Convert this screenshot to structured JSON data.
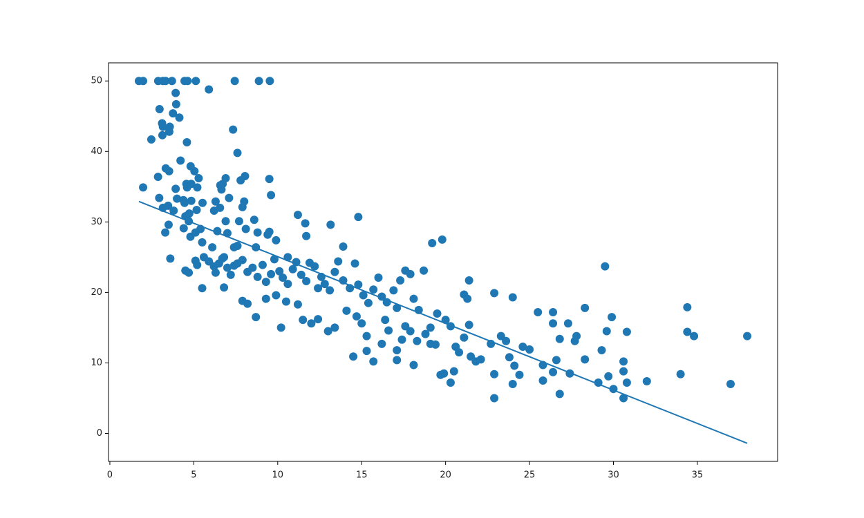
{
  "chart_data": {
    "type": "scatter",
    "xlim": [
      -0.08,
      39.78
    ],
    "ylim": [
      -3.97,
      52.57
    ],
    "xticks": [
      0,
      5,
      10,
      15,
      20,
      25,
      30,
      35
    ],
    "yticks": [
      0,
      10,
      20,
      30,
      40,
      50
    ],
    "series": [
      {
        "type": "scatter",
        "color": "#1f77b4",
        "x": [
          1.73,
          1.98,
          2.88,
          3.16,
          3.32,
          3.7,
          4.45,
          4.63,
          5.12,
          7.44,
          8.88,
          9.53,
          5.9,
          3.92,
          3.95,
          2.96,
          3.76,
          4.14,
          3.11,
          3.16,
          3.57,
          3.54,
          3.13,
          2.47,
          4.59,
          7.34,
          7.6,
          4.21,
          3.33,
          3.53,
          4.81,
          5.04,
          5.29,
          2.87,
          1.98,
          8.05,
          7.79,
          9.5,
          6.72,
          6.58,
          6.65,
          4.56,
          4.85,
          5.21,
          3.92,
          4.6,
          6.9,
          7.1,
          2.94,
          4.0,
          4.38,
          4.85,
          9.6,
          6.3,
          8.0,
          7.9,
          5.52,
          4.45,
          3.16,
          3.47,
          6.56,
          6.21,
          3.8,
          5.17,
          4.73,
          4.5,
          4.7,
          7.7,
          6.9,
          8.6,
          11.2,
          11.64,
          13.15,
          14.8,
          3.5,
          3.3,
          4.4,
          5.4,
          5.1,
          6.4,
          7.0,
          8.1,
          8.8,
          9.4,
          9.5,
          9.9,
          11.7,
          13.9,
          19.2,
          19.8,
          4.8,
          5.5,
          6.1,
          6.8,
          7.4,
          7.6,
          8.7,
          10.6,
          3.6,
          4.5,
          4.7,
          5.1,
          5.2,
          5.6,
          5.9,
          6.2,
          6.3,
          6.5,
          6.7,
          7.0,
          7.2,
          7.4,
          7.6,
          7.9,
          8.2,
          8.5,
          8.8,
          9.1,
          9.3,
          9.6,
          9.8,
          10.1,
          10.3,
          10.6,
          10.9,
          11.1,
          11.4,
          11.7,
          11.9,
          12.2,
          12.4,
          12.6,
          12.8,
          13.1,
          13.4,
          13.6,
          13.9,
          14.3,
          14.6,
          14.8,
          15.1,
          15.4,
          15.7,
          16.0,
          16.2,
          16.5,
          16.9,
          17.1,
          17.3,
          17.6,
          17.9,
          18.1,
          18.4,
          18.7,
          19.1,
          19.5,
          20.3,
          20.0,
          21.1,
          21.3,
          21.4,
          22.9,
          24.0,
          5.5,
          6.8,
          7.9,
          8.2,
          8.7,
          9.3,
          9.9,
          10.2,
          10.5,
          11.2,
          11.5,
          12.0,
          12.4,
          13.0,
          13.4,
          14.1,
          14.5,
          14.7,
          15.0,
          15.3,
          15.3,
          15.7,
          16.2,
          16.4,
          16.6,
          17.1,
          17.1,
          17.4,
          17.6,
          17.9,
          18.1,
          18.3,
          18.8,
          19.1,
          19.4,
          19.7,
          19.9,
          20.3,
          20.5,
          20.6,
          20.8,
          21.1,
          21.4,
          21.5,
          21.8,
          22.1,
          22.7,
          22.9,
          22.9,
          23.3,
          23.6,
          23.8,
          24.0,
          24.1,
          24.4,
          24.6,
          25.0,
          25.5,
          25.8,
          25.8,
          26.4,
          26.4,
          26.6,
          26.4,
          26.8,
          26.8,
          27.3,
          27.4,
          27.7,
          27.8,
          28.3,
          28.3,
          29.1,
          29.3,
          29.5,
          29.6,
          29.7,
          29.9,
          30.0,
          30.6,
          30.6,
          30.6,
          30.8,
          30.8,
          31.99,
          34.0,
          34.4,
          34.4,
          34.8,
          36.98,
          37.97
        ],
        "values": [
          50,
          50,
          50,
          50,
          50,
          50,
          50,
          50,
          50,
          50,
          50,
          50,
          48.8,
          48.3,
          46.7,
          46,
          45.4,
          44.8,
          44,
          43.5,
          43.5,
          42.8,
          42.3,
          41.7,
          41.3,
          43.1,
          39.8,
          38.7,
          37.6,
          37.2,
          37.9,
          37.2,
          36.2,
          36.4,
          34.9,
          36.5,
          35.9,
          36.1,
          35.4,
          35.2,
          34.6,
          35.4,
          35.4,
          34.9,
          34.7,
          34.9,
          36.2,
          33.4,
          33.4,
          33.3,
          33.1,
          33,
          33.8,
          32.9,
          32.9,
          32.1,
          32.7,
          32.7,
          32,
          32.3,
          32,
          31.6,
          31.6,
          31.7,
          31.2,
          30.8,
          30.1,
          30.1,
          30.1,
          30.3,
          31,
          29.8,
          29.6,
          30.7,
          29.6,
          28.5,
          29.1,
          29,
          28.5,
          28.7,
          28.4,
          29,
          28.5,
          28.2,
          28.6,
          27.4,
          28,
          26.5,
          27,
          27.5,
          27.9,
          27.1,
          26.4,
          25,
          26.4,
          26.6,
          26.4,
          25,
          24.8,
          23.1,
          22.8,
          24.5,
          23.9,
          25,
          24.4,
          23.7,
          22.8,
          24.1,
          24.8,
          23.5,
          22.5,
          23.8,
          24.1,
          24.6,
          22.9,
          23.5,
          22.2,
          23.9,
          21.5,
          22.6,
          24.7,
          23,
          22.1,
          21.2,
          23.3,
          24.3,
          22.5,
          21.6,
          24.2,
          23.7,
          20.6,
          22.2,
          21.2,
          20.3,
          22.9,
          24.4,
          21.7,
          20.6,
          24.1,
          21.1,
          19.6,
          18.5,
          20.4,
          22.1,
          19.4,
          18.6,
          20.3,
          17.8,
          21.7,
          23.1,
          22.6,
          19.1,
          17.5,
          23.1,
          15,
          17,
          15.2,
          16.1,
          19.7,
          19.1,
          21.7,
          19.9,
          19.3,
          20.6,
          20.7,
          18.8,
          18.4,
          16.5,
          19.1,
          19.6,
          15,
          18.7,
          18.3,
          16.1,
          15.6,
          16.2,
          14.5,
          15,
          17.4,
          10.9,
          16.6,
          15.6,
          13.8,
          11.7,
          10.2,
          12.7,
          16.1,
          14.6,
          11.8,
          10.4,
          13.3,
          15.2,
          14.5,
          9.7,
          13.1,
          14.1,
          12.7,
          12.6,
          8.3,
          8.5,
          7.2,
          8.8,
          12.3,
          11.5,
          13.6,
          15.4,
          10.9,
          10.2,
          10.5,
          12.7,
          8.4,
          5,
          13.8,
          13.1,
          10.8,
          7,
          9.6,
          8.3,
          12.3,
          11.9,
          17.2,
          9.7,
          7.5,
          17.2,
          15.6,
          10.4,
          8.7,
          5.6,
          13.4,
          15.6,
          8.5,
          13.1,
          13.8,
          17.8,
          10.5,
          7.2,
          11.8,
          23.7,
          14.5,
          8.1,
          16.5,
          6.3,
          10.2,
          8.8,
          5,
          7.2,
          14.4,
          7.4,
          8.4,
          17.9,
          14.4,
          13.8,
          7,
          13.8
        ]
      },
      {
        "type": "line",
        "color": "#1f77b4",
        "x": [
          1.73,
          37.97
        ],
        "values": [
          32.9,
          -1.4
        ]
      }
    ]
  }
}
